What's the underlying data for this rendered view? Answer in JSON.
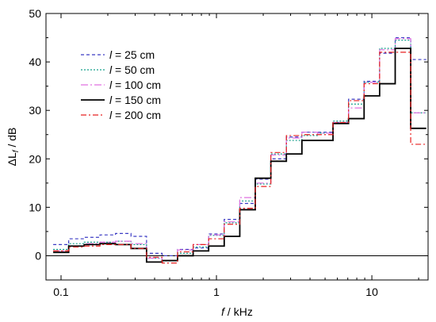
{
  "chart_data": {
    "type": "line",
    "step": true,
    "xlabel_italic": "f",
    "xlabel_rest": " / kHz",
    "ylabel_prefix": "ΔL",
    "ylabel_sub": "f",
    "ylabel_rest": " / dB",
    "x_scale": "log",
    "xlim": [
      0.08,
      23
    ],
    "ylim": [
      -5,
      50
    ],
    "x_ticks": [
      0.1,
      1,
      10
    ],
    "x_tick_labels": [
      "0.1",
      "1",
      "10"
    ],
    "y_ticks": [
      0,
      10,
      20,
      30,
      40,
      50
    ],
    "y_tick_labels": [
      "0",
      "10",
      "20",
      "30",
      "40",
      "50"
    ],
    "zero_line": true,
    "legend_position": "upper-left",
    "band_edges": [
      0.089,
      0.112,
      0.141,
      0.178,
      0.224,
      0.282,
      0.355,
      0.447,
      0.562,
      0.708,
      0.891,
      1.122,
      1.413,
      1.778,
      2.239,
      2.818,
      3.548,
      4.467,
      5.623,
      7.079,
      8.913,
      11.22,
      14.13,
      17.78,
      22.39
    ],
    "series": [
      {
        "name_italic": "l",
        "name_rest": " = 25 cm",
        "color": "#3b3bc4",
        "dash": "4,3",
        "values": [
          2.3,
          3.5,
          3.8,
          4.3,
          4.6,
          4.0,
          0.5,
          0.0,
          1.3,
          1.6,
          4.5,
          7.5,
          10.8,
          15.8,
          20.0,
          24.5,
          25.5,
          25.5,
          27.5,
          32.3,
          36.0,
          41.8,
          45.0,
          40.5
        ]
      },
      {
        "name_italic": "l",
        "name_rest": " = 50 cm",
        "color": "#14a08c",
        "dash": "2,2",
        "values": [
          1.3,
          2.5,
          2.8,
          2.8,
          3.0,
          2.3,
          -0.5,
          -1.0,
          0.5,
          1.8,
          4.2,
          6.8,
          11.3,
          14.8,
          21.0,
          23.8,
          24.8,
          25.3,
          27.8,
          31.3,
          35.8,
          42.8,
          44.5,
          29.5
        ]
      },
      {
        "name_italic": "l",
        "name_rest": " = 100 cm",
        "color": "#e070e0",
        "dash": "9,3,2,3",
        "values": [
          1.0,
          2.0,
          2.5,
          2.8,
          3.0,
          2.5,
          -0.5,
          -1.0,
          1.2,
          2.3,
          4.3,
          7.0,
          12.0,
          15.0,
          20.8,
          24.3,
          25.5,
          25.3,
          27.5,
          30.5,
          35.8,
          42.5,
          44.8,
          29.5
        ]
      },
      {
        "name_italic": "l",
        "name_rest": " = 150 cm",
        "color": "#000000",
        "dash": "",
        "values": [
          0.7,
          2.0,
          2.3,
          2.5,
          2.3,
          1.5,
          -1.3,
          -1.0,
          0.0,
          1.0,
          2.0,
          4.0,
          9.5,
          16.0,
          19.5,
          21.0,
          23.8,
          23.8,
          27.3,
          28.3,
          33.0,
          35.5,
          42.8,
          26.3
        ]
      },
      {
        "name_italic": "l",
        "name_rest": " = 200 cm",
        "color": "#e82020",
        "dash": "7,3,2,3",
        "values": [
          1.0,
          1.8,
          2.0,
          2.3,
          2.3,
          1.5,
          -0.3,
          -1.5,
          0.8,
          2.3,
          3.5,
          6.5,
          9.8,
          14.3,
          21.3,
          24.8,
          25.0,
          25.0,
          27.5,
          32.0,
          35.5,
          42.0,
          42.0,
          23.0
        ]
      }
    ]
  }
}
